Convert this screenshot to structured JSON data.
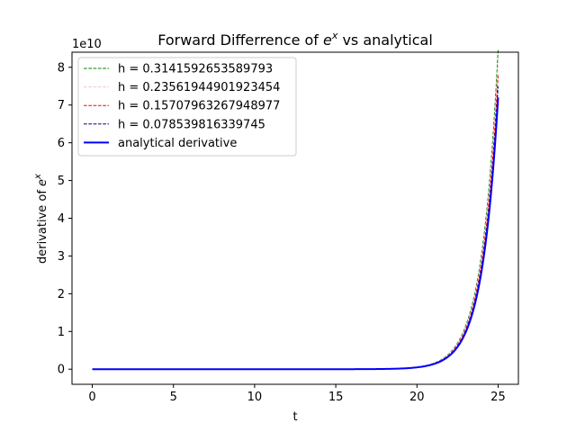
{
  "chart_data": {
    "type": "line",
    "title": "Forward Differrence of e^x vs analytical",
    "title_main": "Forward Differrence of ",
    "title_base": "e",
    "title_exp": "x",
    "title_tail": " vs analytical",
    "xlabel": "t",
    "ylabel_main": "derivative of ",
    "ylabel_base": "e",
    "ylabel_exp": "x",
    "offset_label": "1e10",
    "xlim": [
      -1.25,
      26.25
    ],
    "ylim": [
      -0.4,
      8.4
    ],
    "y_scale_exponent": 10,
    "xticks": [
      0,
      5,
      10,
      15,
      20,
      25
    ],
    "yticks": [
      0,
      1,
      2,
      3,
      4,
      5,
      6,
      7,
      8
    ],
    "legend_position": "upper-left",
    "series": [
      {
        "name": "h = 0.3141592653589793",
        "h": 0.3141592653589793,
        "style": "dashed",
        "color": "#008000",
        "width": 1,
        "function": "forward difference of e^t"
      },
      {
        "name": "h = 0.23561944901923454",
        "h": 0.23561944901923454,
        "style": "dashed",
        "color": "#ffc0cb",
        "width": 1,
        "function": "forward difference of e^t"
      },
      {
        "name": "h = 0.15707963267948977",
        "h": 0.15707963267948977,
        "style": "dashed",
        "color": "#ff0000",
        "width": 1,
        "function": "forward difference of e^t"
      },
      {
        "name": "h = 0.078539816339745",
        "h": 0.078539816339745,
        "style": "dashed",
        "color": "#00008b",
        "width": 1,
        "function": "forward difference of e^t"
      },
      {
        "name": "analytical derivative",
        "h": 0,
        "style": "solid",
        "color": "#0000ff",
        "width": 2,
        "function": "e^t"
      }
    ],
    "t_range": [
      0,
      25
    ]
  }
}
